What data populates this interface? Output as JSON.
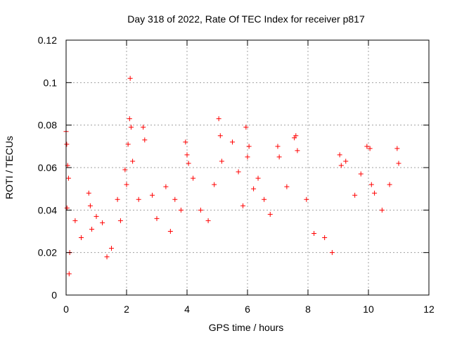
{
  "chart_data": {
    "type": "scatter",
    "title": "Day 318 of 2022, Rate Of TEC Index for receiver p817",
    "xlabel": "GPS time / hours",
    "ylabel": "ROTI / TECUs",
    "xlim": [
      0,
      12
    ],
    "ylim": [
      0,
      0.12
    ],
    "xticks": [
      0,
      2,
      4,
      6,
      8,
      10,
      12
    ],
    "xtick_labels": [
      "0",
      "2",
      "4",
      "6",
      "8",
      "10",
      "12"
    ],
    "yticks": [
      0,
      0.02,
      0.04,
      0.06,
      0.08,
      0.1,
      0.12
    ],
    "ytick_labels": [
      "0",
      "0.02",
      "0.04",
      "0.06",
      "0.08",
      "0.1",
      "0.12"
    ],
    "grid": true,
    "marker": "+",
    "colors": {
      "series": "#ff0000",
      "grid": "#a0a0a0",
      "axis": "#000000"
    },
    "series": [
      {
        "name": "ROTI",
        "x": [
          0.0,
          0.02,
          0.03,
          0.05,
          0.08,
          0.1,
          0.12,
          0.3,
          0.5,
          0.75,
          0.8,
          0.85,
          1.0,
          1.2,
          1.35,
          1.5,
          1.7,
          1.8,
          1.95,
          2.0,
          2.05,
          2.1,
          2.12,
          2.15,
          2.2,
          2.4,
          2.55,
          2.6,
          2.85,
          3.0,
          3.3,
          3.45,
          3.6,
          3.8,
          3.95,
          4.0,
          4.05,
          4.2,
          4.45,
          4.7,
          4.9,
          5.05,
          5.1,
          5.15,
          5.5,
          5.7,
          5.85,
          5.95,
          6.0,
          6.05,
          6.2,
          6.35,
          6.55,
          6.75,
          7.0,
          7.05,
          7.3,
          7.55,
          7.6,
          7.65,
          7.95,
          8.2,
          8.55,
          8.8,
          9.05,
          9.1,
          9.25,
          9.55,
          9.75,
          9.95,
          10.05,
          10.1,
          10.2,
          10.45,
          10.7,
          10.95,
          11.0
        ],
        "y": [
          0.077,
          0.071,
          0.041,
          0.061,
          0.055,
          0.01,
          0.02,
          0.035,
          0.027,
          0.048,
          0.042,
          0.031,
          0.037,
          0.034,
          0.018,
          0.022,
          0.045,
          0.035,
          0.059,
          0.052,
          0.071,
          0.083,
          0.102,
          0.079,
          0.063,
          0.045,
          0.079,
          0.073,
          0.047,
          0.036,
          0.051,
          0.03,
          0.045,
          0.04,
          0.072,
          0.066,
          0.062,
          0.055,
          0.04,
          0.035,
          0.052,
          0.083,
          0.075,
          0.063,
          0.072,
          0.058,
          0.042,
          0.079,
          0.065,
          0.07,
          0.05,
          0.055,
          0.045,
          0.038,
          0.07,
          0.065,
          0.051,
          0.074,
          0.075,
          0.068,
          0.045,
          0.029,
          0.027,
          0.02,
          0.066,
          0.061,
          0.063,
          0.047,
          0.057,
          0.07,
          0.069,
          0.052,
          0.048,
          0.04,
          0.052,
          0.069,
          0.062
        ]
      }
    ]
  }
}
